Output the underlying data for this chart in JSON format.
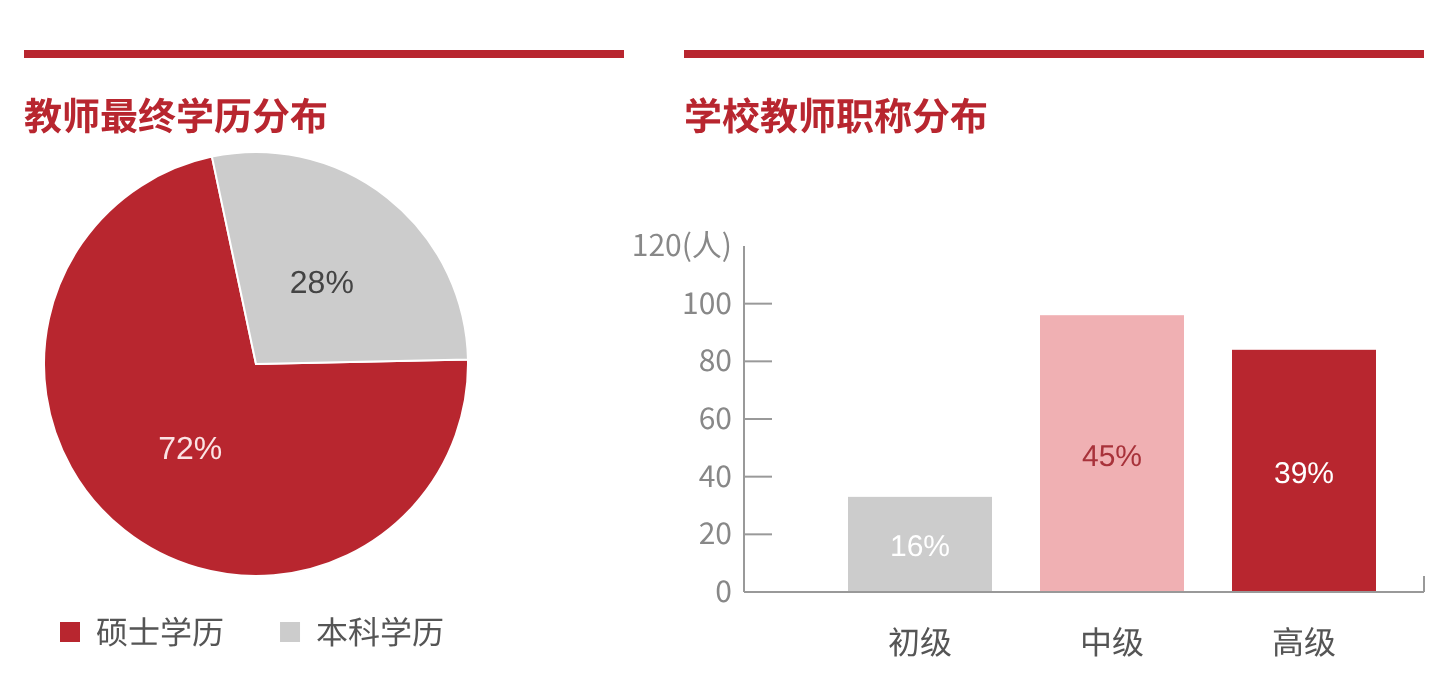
{
  "chart_data": [
    {
      "type": "pie",
      "title": "教师最终学历分布",
      "categories": [
        "硕士学历",
        "本科学历"
      ],
      "values": [
        72,
        28
      ],
      "colors": [
        "#b8262f",
        "#cccccc"
      ],
      "value_labels": [
        "72%",
        "28%"
      ],
      "legend": "bottom left"
    },
    {
      "type": "bar",
      "title": "学校教师职称分布",
      "categories": [
        "初级",
        "中级",
        "高级"
      ],
      "values": [
        33,
        96,
        84
      ],
      "colors": [
        "#cccccc",
        "#f0b0b3",
        "#b8262f"
      ],
      "annotations": [
        "16%",
        "45%",
        "39%"
      ],
      "ylim": [
        0,
        120
      ],
      "yticks": [
        0,
        20,
        40,
        60,
        80,
        100,
        {
          "value": 120,
          "label": "120(人)"
        }
      ],
      "grid": false
    }
  ]
}
